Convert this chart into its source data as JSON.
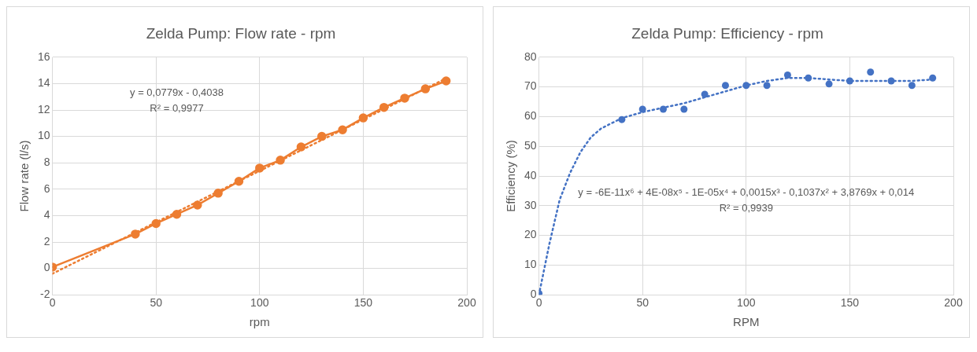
{
  "chart_data": [
    {
      "type": "line",
      "title": "Zelda Pump: Flow rate - rpm",
      "xlabel": "rpm",
      "ylabel": "Flow rate (l/s)",
      "x": [
        0,
        40,
        50,
        60,
        70,
        80,
        90,
        100,
        110,
        120,
        130,
        140,
        150,
        160,
        170,
        180,
        190
      ],
      "xlim": [
        0,
        200
      ],
      "xticks": [
        0,
        50,
        100,
        150,
        200
      ],
      "ylim": [
        -2,
        16
      ],
      "yticks": [
        -2,
        0,
        2,
        4,
        6,
        8,
        10,
        12,
        14,
        16
      ],
      "grid": true,
      "legend": false,
      "annotations": [
        "y = 0,0779x - 0,4038",
        "R² = 0,9977"
      ],
      "series": [
        {
          "color": "#ed7d31",
          "marker": "circle",
          "line_style": "solid",
          "values": [
            0.1,
            2.6,
            3.4,
            4.1,
            4.8,
            5.7,
            6.6,
            7.6,
            8.2,
            9.2,
            10.0,
            10.5,
            11.4,
            12.2,
            12.9,
            13.6,
            14.2
          ]
        },
        {
          "type": "line",
          "color": "#ed7d31",
          "marker": "none",
          "line_style": "dotted",
          "x": [
            0,
            190
          ],
          "values": [
            -0.4,
            14.4
          ]
        }
      ]
    },
    {
      "type": "scatter",
      "title": "Zelda Pump: Efficiency - rpm",
      "xlabel": "RPM",
      "ylabel": "Efficiency (%)",
      "x": [
        0,
        40,
        50,
        60,
        70,
        80,
        90,
        100,
        110,
        120,
        130,
        140,
        150,
        160,
        170,
        180,
        190
      ],
      "xlim": [
        0,
        200
      ],
      "xticks": [
        0,
        50,
        100,
        150,
        200
      ],
      "ylim": [
        0,
        80
      ],
      "yticks": [
        0,
        10,
        20,
        30,
        40,
        50,
        60,
        70,
        80
      ],
      "grid": true,
      "legend": false,
      "annotations": [
        "y = -6E-11x⁶ + 4E-08x⁵ - 1E-05x⁴ + 0,0015x³ - 0,1037x² + 3,8769x + 0,014",
        "R² = 0,9939"
      ],
      "series": [
        {
          "color": "#4472c4",
          "marker": "circle",
          "values": [
            0.5,
            59,
            62.5,
            62.5,
            62.5,
            67.5,
            70.5,
            70.5,
            70.5,
            74,
            73,
            71,
            72,
            75,
            72,
            70.5,
            73
          ]
        },
        {
          "type": "line",
          "color": "#4472c4",
          "marker": "none",
          "line_style": "dotted",
          "x": [
            0,
            5,
            10,
            15,
            20,
            25,
            30,
            40,
            50,
            60,
            70,
            80,
            90,
            100,
            110,
            120,
            130,
            140,
            150,
            160,
            170,
            180,
            190
          ],
          "values": [
            0,
            17,
            32,
            41,
            48,
            53,
            56,
            59.5,
            61.5,
            63,
            64.5,
            66.5,
            68.5,
            70.5,
            72,
            73,
            73,
            72.5,
            72,
            72,
            72,
            72,
            72.5
          ]
        }
      ]
    }
  ]
}
